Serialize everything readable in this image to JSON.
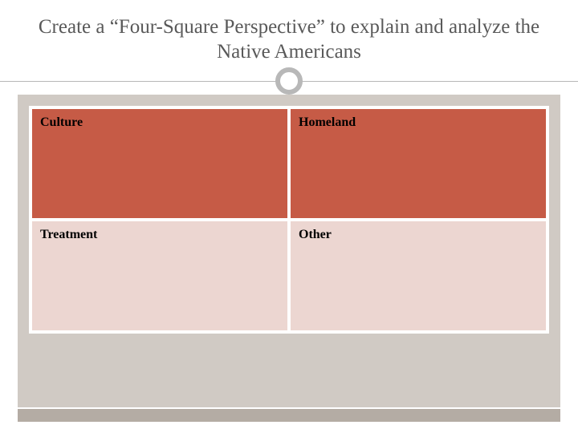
{
  "title": "Create a “Four-Square Perspective” to explain and analyze the Native Americans",
  "grid": {
    "rows": 2,
    "cols": 2,
    "row1_bg": "#c65b46",
    "row2_bg": "#ecd6d1",
    "border_color": "#ffffff",
    "cells": [
      {
        "label": "Culture"
      },
      {
        "label": "Homeland"
      },
      {
        "label": "Treatment"
      },
      {
        "label": "Other"
      }
    ]
  },
  "colors": {
    "title_text": "#595959",
    "rule": "#b8b8b8",
    "content_bg": "#d0cac4",
    "footer_bar": "#b4aca4"
  }
}
